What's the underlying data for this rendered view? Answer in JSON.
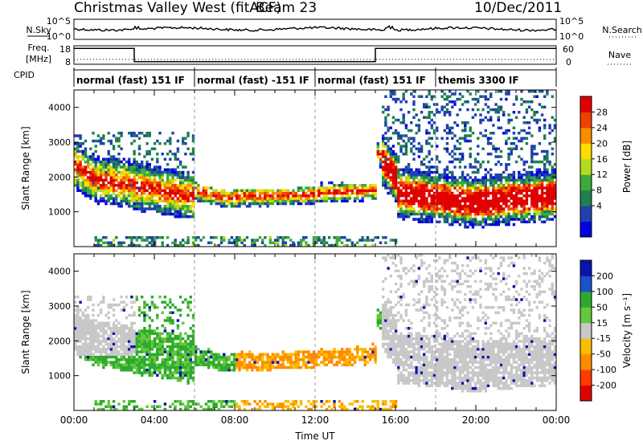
{
  "header": {
    "title": "Christmas Valley West (fitACF)",
    "beam": "Beam 23",
    "date": "10/Dec/2011"
  },
  "top_panels": {
    "nsky_label": "N.Sky",
    "nsky_ticks": [
      "10^5",
      "10^0"
    ],
    "nsearch_label": "N.Search",
    "nsearch_ticks": [
      "10^5",
      "10^0"
    ],
    "freq_label": "Freq.",
    "freq_unit": "[MHz]",
    "freq_ticks": [
      "18",
      "8"
    ],
    "nave_label": "Nave",
    "nave_ticks": [
      "60",
      "0"
    ],
    "cpid_label": "CPID",
    "cpid_segments": [
      {
        "label": "normal (fast) 151 IF",
        "start_h": 0,
        "end_h": 6
      },
      {
        "label": "normal (fast) -151 IF",
        "start_h": 6,
        "end_h": 12
      },
      {
        "label": "normal (fast) 151 IF",
        "start_h": 12,
        "end_h": 18
      },
      {
        "label": "themis 3300 IF",
        "start_h": 18,
        "end_h": 24
      }
    ],
    "freq_series_mhz": [
      {
        "start_h": 0,
        "end_h": 3,
        "value": 18
      },
      {
        "start_h": 3,
        "end_h": 15,
        "value": 8
      },
      {
        "start_h": 15,
        "end_h": 24,
        "value": 18
      }
    ]
  },
  "chart_data": [
    {
      "type": "heatmap",
      "title": "",
      "xlabel": "Time UT",
      "ylabel": "Slant Range [km]",
      "xlim_hours": [
        0,
        24
      ],
      "ylim": [
        0,
        4500
      ],
      "x_ticks": [
        "00:00",
        "04:00",
        "08:00",
        "12:00",
        "16:00",
        "20:00",
        "00:00"
      ],
      "y_ticks": [
        1000,
        2000,
        3000,
        4000
      ],
      "colorbar": {
        "label": "Power [dB]",
        "ticks": [
          "28",
          "24",
          "20",
          "16",
          "12",
          "8",
          "4"
        ],
        "range": [
          0,
          30
        ]
      }
    },
    {
      "type": "heatmap",
      "title": "",
      "xlabel": "Time UT",
      "ylabel": "Slant Range [km]",
      "xlim_hours": [
        0,
        24
      ],
      "ylim": [
        0,
        4500
      ],
      "x_ticks": [
        "00:00",
        "04:00",
        "08:00",
        "12:00",
        "16:00",
        "20:00",
        "00:00"
      ],
      "y_ticks": [
        1000,
        2000,
        3000,
        4000
      ],
      "colorbar": {
        "label": "Velocity [m s⁻¹]",
        "ticks": [
          "200",
          "100",
          "50",
          "15",
          "-15",
          "-50",
          "-100",
          "-200"
        ]
      }
    }
  ],
  "colors": {
    "power_scale": [
      "#0000e0",
      "#2040b0",
      "#1f7f50",
      "#3caa3c",
      "#b4dc1e",
      "#fadc00",
      "#fa8c00",
      "#f04000",
      "#e00000"
    ],
    "velocity_scale": [
      "#e00000",
      "#ff3c00",
      "#ff8c00",
      "#fabe00",
      "#c8c8c8",
      "#64c83c",
      "#2daa2d",
      "#1e50c8",
      "#0a14aa"
    ]
  }
}
